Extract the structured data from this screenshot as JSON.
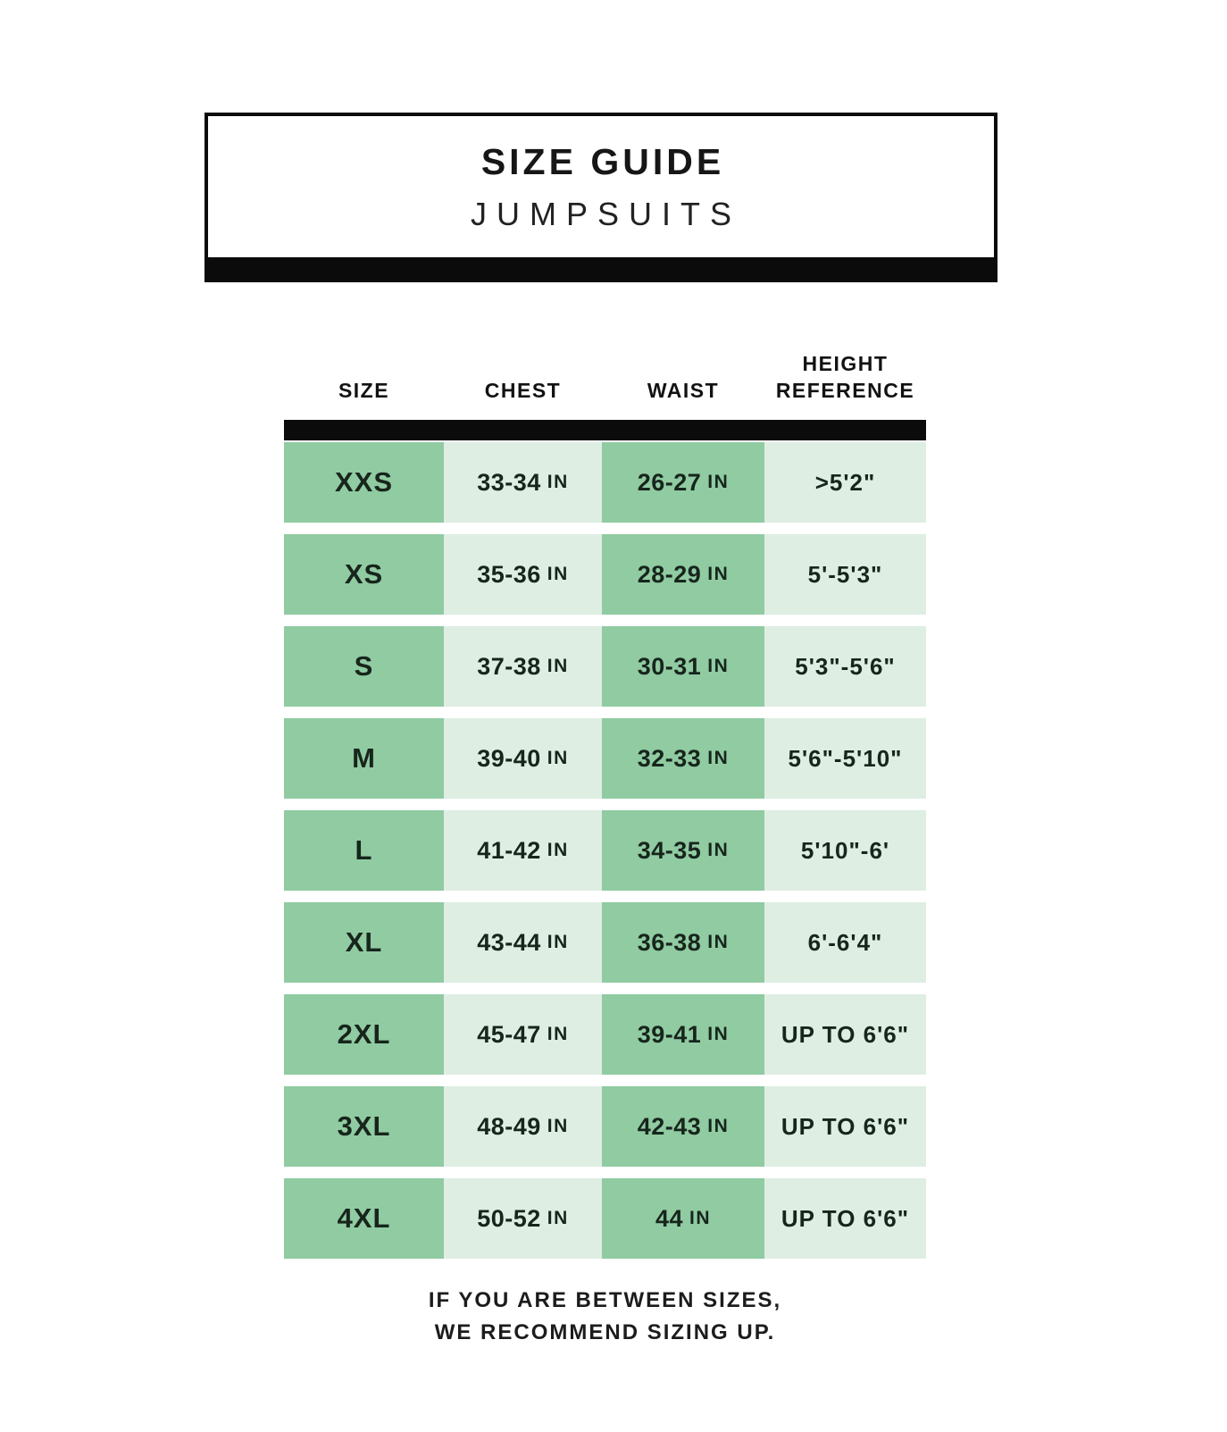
{
  "header": {
    "title": "SIZE GUIDE",
    "subtitle": "JUMPSUITS"
  },
  "footer": {
    "line1": "IF YOU ARE BETWEEN SIZES,",
    "line2": "WE RECOMMEND SIZING UP."
  },
  "colors": {
    "black": "#0b0b0b",
    "green_dark": "#90cba2",
    "green_light": "#deeee3",
    "cell_text": "#17251c"
  },
  "chart_data": {
    "type": "table",
    "title": "SIZE GUIDE",
    "subtitle": "JUMPSUITS",
    "columns": [
      "SIZE",
      "CHEST",
      "WAIST",
      "HEIGHT REFERENCE"
    ],
    "rows": [
      [
        "XXS",
        "33-34 IN",
        "26-27 IN",
        ">5'2\""
      ],
      [
        "XS",
        "35-36 IN",
        "28-29 IN",
        "5'-5'3\""
      ],
      [
        "S",
        "37-38 IN",
        "30-31 IN",
        "5'3\"-5'6\""
      ],
      [
        "M",
        "39-40 IN",
        "32-33 IN",
        "5'6\"-5'10\""
      ],
      [
        "L",
        "41-42 IN",
        "34-35 IN",
        "5'10\"-6'"
      ],
      [
        "XL",
        "43-44 IN",
        "36-38 IN",
        "6'-6'4\""
      ],
      [
        "2XL",
        "45-47 IN",
        "39-41 IN",
        "UP TO 6'6\""
      ],
      [
        "3XL",
        "48-49 IN",
        "42-43 IN",
        "UP TO 6'6\""
      ],
      [
        "4XL",
        "50-52 IN",
        "44 IN",
        "UP TO 6'6\""
      ]
    ],
    "note": "IF YOU ARE BETWEEN SIZES, WE RECOMMEND SIZING UP.",
    "layout": "size column and waist column on darker green cells; chest and height reference columns on lighter green cells; rows separated by white gaps; thick black bars under title box and under column headers"
  }
}
